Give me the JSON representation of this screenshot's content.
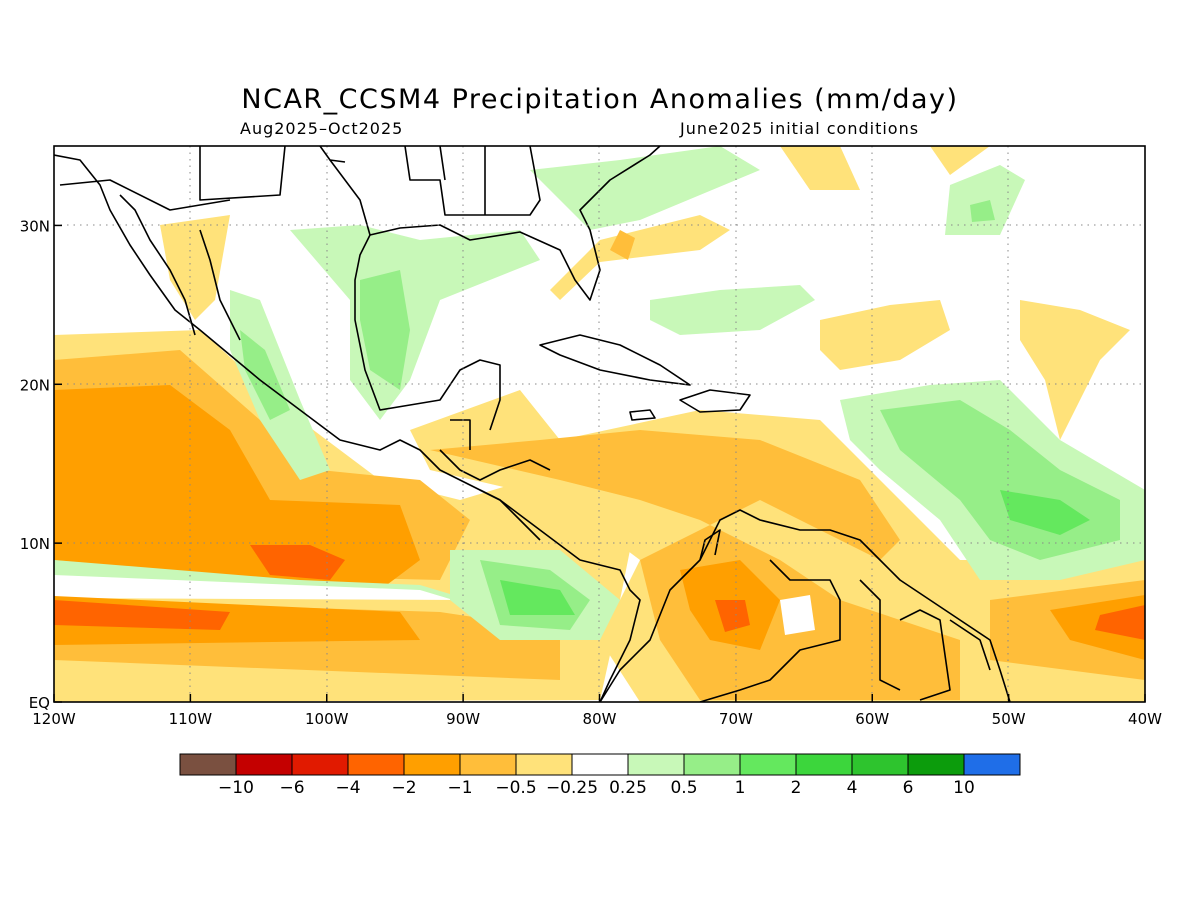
{
  "title": "NCAR_CCSM4 Precipitation Anomalies (mm/day)",
  "subtitle_left": "Aug2025–Oct2025",
  "subtitle_right": "June2025 initial conditions",
  "map": {
    "lon_range": [
      -120,
      -40
    ],
    "lat_range": [
      0,
      35
    ],
    "grid_lines": "dotted",
    "x_ticks": [
      {
        "lon": -120,
        "label": "120W"
      },
      {
        "lon": -110,
        "label": "110W"
      },
      {
        "lon": -100,
        "label": "100W"
      },
      {
        "lon": -90,
        "label": "90W"
      },
      {
        "lon": -80,
        "label": "80W"
      },
      {
        "lon": -70,
        "label": "70W"
      },
      {
        "lon": -60,
        "label": "60W"
      },
      {
        "lon": -50,
        "label": "50W"
      },
      {
        "lon": -40,
        "label": "40W"
      }
    ],
    "y_ticks": [
      {
        "lat": 0,
        "label": "EQ"
      },
      {
        "lat": 10,
        "label": "10N"
      },
      {
        "lat": 20,
        "label": "20N"
      },
      {
        "lat": 30,
        "label": "30N"
      }
    ]
  },
  "colorbar": {
    "colors": [
      "#7a5040",
      "#c40000",
      "#e11a00",
      "#ff6400",
      "#ff9f00",
      "#ffbe3a",
      "#ffe27a",
      "#ffffff",
      "#c8f8b8",
      "#96ee88",
      "#64e85e",
      "#3cd63c",
      "#2ec42e",
      "#0c9c0c",
      "#1f6ee8"
    ],
    "labels": [
      "−10",
      "−6",
      "−4",
      "−2",
      "−1",
      "−0.5",
      "−0.25",
      "0.25",
      "0.5",
      "1",
      "2",
      "4",
      "6",
      "10"
    ]
  }
}
